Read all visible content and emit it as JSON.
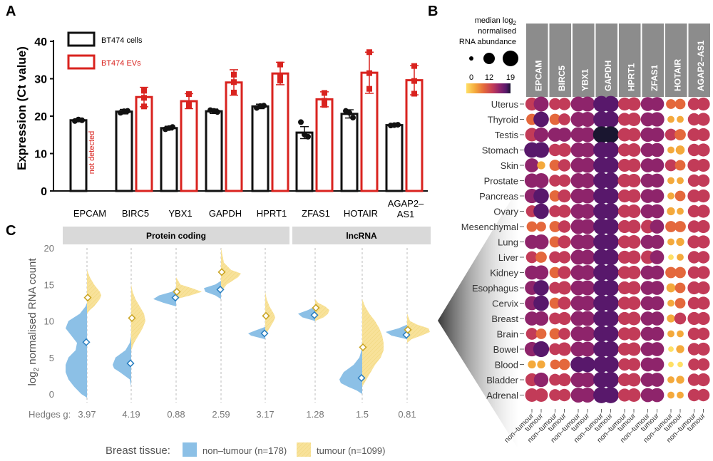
{
  "colors": {
    "cells": "#111111",
    "evs": "#d9231f",
    "non_tumour": "#8cc0e6",
    "tumour": "#f8e29a",
    "header_grey": "#d9d9d9",
    "header_dark": "#8c8c8c",
    "palette": [
      "#ffe066",
      "#f4a93c",
      "#e4683c",
      "#c23b58",
      "#8e246b",
      "#58186b",
      "#1a1630"
    ]
  },
  "chart_data": [
    {
      "id": "A",
      "panel_label": "A",
      "type": "bar",
      "ylabel": "Expression (Ct value)",
      "ylim": [
        0,
        40
      ],
      "yticks": [
        "0",
        "10",
        "20",
        "30",
        "40"
      ],
      "categories": [
        "EPCAM",
        "BIRC5",
        "YBX1",
        "GAPDH",
        "HPRT1",
        "ZFAS1",
        "HOTAIR",
        "AGAP2–AS1"
      ],
      "series": [
        {
          "name": "BT474 cells",
          "values": [
            18.9,
            21.2,
            16.8,
            21.3,
            22.6,
            15.6,
            20.6,
            17.6
          ],
          "error": [
            0.4,
            0.6,
            0.5,
            0.6,
            0.6,
            1.6,
            1.1,
            0.3
          ]
        },
        {
          "name": "BT474 EVs",
          "values": [
            null,
            25.1,
            24.0,
            29.0,
            31.4,
            24.5,
            31.6,
            29.6
          ],
          "error": [
            null,
            2.6,
            2.0,
            3.4,
            3.0,
            2.0,
            5.5,
            3.9
          ]
        }
      ],
      "points": {
        "cells": [
          [
            18.7,
            18.9,
            19.1
          ],
          [
            20.9,
            21.4,
            21.3
          ],
          [
            16.5,
            17.1,
            16.8
          ],
          [
            21.6,
            21.1,
            21.4
          ],
          [
            22.2,
            22.8,
            22.7
          ],
          [
            18.4,
            14.5,
            15.1
          ],
          [
            21.4,
            19.6,
            20.9
          ],
          [
            17.5,
            17.7,
            17.6
          ]
        ],
        "evs": [
          [],
          [
            26.8,
            24.9,
            22.6
          ],
          [
            25.9,
            23.2,
            22.8
          ],
          [
            31.1,
            29.1,
            26.3
          ],
          [
            33.8,
            30.8,
            29.5
          ],
          [
            26.2,
            24.1,
            23.0
          ],
          [
            37.1,
            31.5,
            27.3
          ],
          [
            33.4,
            29.4,
            26.0
          ]
        ]
      },
      "annotations": [
        "not detected"
      ]
    },
    {
      "id": "B",
      "panel_label": "B",
      "type": "heatmap",
      "size_legend_title": [
        "median log",
        "2",
        " normalised",
        "RNA abundance"
      ],
      "scale_ticks": [
        "0",
        "12",
        "19"
      ],
      "columns": [
        "EPCAM",
        "BIRC5",
        "YBX1",
        "GAPDH",
        "HPRT1",
        "ZFAS1",
        "HOTAIR",
        "AGAP2–AS1"
      ],
      "rows": [
        "Uterus",
        "Thyroid",
        "Testis",
        "Stomach",
        "Skin",
        "Prostate",
        "Pancreas",
        "Ovary",
        "Mesenchymal",
        "Lung",
        "Liver",
        "Kidney",
        "Esophagus",
        "Cervix",
        "Breast",
        "Brain",
        "Bowel",
        "Blood",
        "Bladder",
        "Adrenal"
      ],
      "x_tick_labels": [
        "non–tumour",
        "tumour"
      ],
      "values_non_tumour": [
        [
          10,
          8,
          14,
          17,
          10,
          12,
          5,
          9
        ],
        [
          7,
          7,
          14,
          17,
          10,
          12,
          2,
          9
        ],
        [
          11,
          12,
          14,
          18,
          11,
          13,
          8,
          10
        ],
        [
          15,
          9,
          14,
          17,
          10,
          12,
          2,
          9
        ],
        [
          12,
          7,
          14,
          17,
          10,
          12,
          8,
          10
        ],
        [
          13,
          8,
          14,
          17,
          11,
          12,
          2,
          9
        ],
        [
          13,
          7,
          14,
          17,
          10,
          12,
          2,
          10
        ],
        [
          8,
          8,
          14,
          17,
          10,
          12,
          3,
          9
        ],
        [
          6,
          7,
          14,
          17,
          10,
          11,
          7,
          9
        ],
        [
          12,
          7,
          14,
          17,
          10,
          12,
          2,
          10
        ],
        [
          8,
          8,
          14,
          17,
          10,
          11,
          1,
          9
        ],
        [
          12,
          7,
          14,
          17,
          10,
          12,
          7,
          9
        ],
        [
          12,
          8,
          14,
          17,
          10,
          12,
          4,
          10
        ],
        [
          12,
          7,
          14,
          17,
          10,
          12,
          2,
          9
        ],
        [
          12,
          8,
          14,
          17,
          10,
          12,
          3,
          10
        ],
        [
          8,
          7,
          14,
          16,
          10,
          12,
          2,
          9
        ],
        [
          13,
          8,
          14,
          17,
          10,
          12,
          1,
          9
        ],
        [
          3,
          5,
          15,
          17,
          9,
          12,
          1,
          8
        ],
        [
          10,
          8,
          14,
          17,
          10,
          12,
          2,
          9
        ],
        [
          11,
          8,
          14,
          17,
          10,
          12,
          2,
          9
        ]
      ],
      "values_tumour": [
        [
          14,
          9,
          14,
          17,
          11,
          12,
          6,
          10
        ],
        [
          15,
          8,
          14,
          17,
          11,
          13,
          2,
          10
        ],
        [
          13,
          12,
          14,
          18,
          11,
          13,
          7,
          10
        ],
        [
          16,
          11,
          14,
          17,
          11,
          12,
          4,
          10
        ],
        [
          3,
          9,
          14,
          17,
          11,
          12,
          6,
          10
        ],
        [
          14,
          9,
          14,
          17,
          11,
          12,
          2,
          9
        ],
        [
          15,
          10,
          14,
          17,
          11,
          12,
          6,
          10
        ],
        [
          15,
          10,
          14,
          17,
          11,
          12,
          2,
          10
        ],
        [
          5,
          9,
          14,
          17,
          11,
          12,
          7,
          10
        ],
        [
          14,
          10,
          14,
          17,
          11,
          12,
          3,
          10
        ],
        [
          7,
          9,
          14,
          17,
          11,
          12,
          2,
          9
        ],
        [
          13,
          10,
          14,
          17,
          11,
          12,
          7,
          10
        ],
        [
          15,
          11,
          14,
          17,
          11,
          12,
          6,
          10
        ],
        [
          15,
          10,
          14,
          17,
          11,
          12,
          6,
          10
        ],
        [
          13,
          10,
          14,
          17,
          11,
          12,
          8,
          10
        ],
        [
          6,
          8,
          14,
          16,
          11,
          12,
          2,
          9
        ],
        [
          16,
          11,
          14,
          17,
          11,
          12,
          3,
          10
        ],
        [
          3,
          7,
          15,
          17,
          10,
          12,
          1,
          9
        ],
        [
          13,
          10,
          14,
          17,
          11,
          12,
          3,
          10
        ],
        [
          11,
          9,
          14,
          17,
          11,
          12,
          2,
          9
        ]
      ]
    },
    {
      "id": "C",
      "panel_label": "C",
      "type": "area",
      "ylabel": [
        "log",
        "2",
        " normalised RNA count"
      ],
      "ylim": [
        -1,
        21
      ],
      "yticks": [
        "0",
        "5",
        "10",
        "15",
        "20"
      ],
      "group_headers": [
        "Protein coding",
        "lncRNA"
      ],
      "categories": [
        "EPCAM",
        "BIRC5",
        "YBX1",
        "GAPDH",
        "HPRT1",
        "ZFAS1",
        "HOTAIR",
        "AGAP2–AS1"
      ],
      "medians_non_tumour": [
        7.1,
        4.2,
        13.2,
        14.3,
        8.3,
        10.8,
        2.2,
        8.1
      ],
      "medians_tumour": [
        13.2,
        10.4,
        14.0,
        16.7,
        10.7,
        11.8,
        6.4,
        8.8
      ],
      "hedges_label": "Hedges g:",
      "hedges_g": [
        "3.97",
        "4.19",
        "0.88",
        "2.59",
        "3.17",
        "1.28",
        "1.5",
        "0.81"
      ],
      "legend_title": "Breast tissue:",
      "series": [
        {
          "name": "non–tumour (n=178)"
        },
        {
          "name": "tumour (n=1099)"
        }
      ]
    }
  ]
}
